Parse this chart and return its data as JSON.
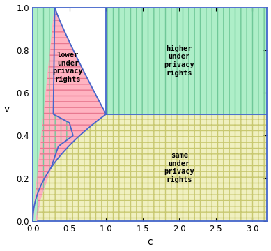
{
  "title": "",
  "xlabel": "c",
  "ylabel": "v",
  "xlim": [
    0.0,
    3.2
  ],
  "ylim": [
    0.0,
    1.0
  ],
  "xticks": [
    0.0,
    0.5,
    1.0,
    1.5,
    2.0,
    2.5,
    3.0
  ],
  "yticks": [
    0.0,
    0.2,
    0.4,
    0.6,
    0.8,
    1.0
  ],
  "color_green": "#aeeec8",
  "color_pink": "#ffb3c1",
  "color_yellow": "#f0f0c0",
  "border_color": "#4466cc",
  "label_higher": "higher\nunder\nprivacy\nrights",
  "label_lower": "lower\nunder\nprivacy\nrights",
  "label_same": "same\nunder\nprivacy\nrights",
  "hatch_pink": "---",
  "hatch_yellow": "+++",
  "hatch_green": "|||"
}
